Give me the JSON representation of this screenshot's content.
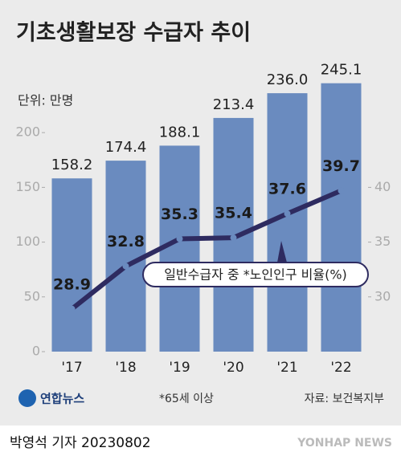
{
  "chart_data": {
    "type": "bar_line",
    "title": "기초생활보장 수급자 추이",
    "unit": "단위: 만명",
    "categories": [
      "'17",
      "'18",
      "'19",
      "'20",
      "'21",
      "'22"
    ],
    "series": [
      {
        "name": "기초생활보장 수급자",
        "color": "#6a8bbf",
        "values": [
          158.2,
          174.4,
          188.1,
          213.4,
          236.0,
          245.1
        ],
        "value_labels": [
          "158.2",
          "174.4",
          "188.1",
          "213.4",
          "236.0",
          "245.1"
        ]
      },
      {
        "name": "일반수급자 중 *노인인구 비율(%)",
        "color": "#2e2b60",
        "axis": "y2",
        "values": [
          28.9,
          32.8,
          35.3,
          35.4,
          37.6,
          39.7
        ]
      }
    ],
    "ylim": [
      0,
      250
    ],
    "yticks": [
      0,
      50,
      100,
      150,
      200
    ],
    "y2lim": [
      25,
      50
    ],
    "y2ticks": [
      30,
      35,
      40
    ],
    "footnote": "*65세 이상",
    "source": "자료: 보건복지부",
    "logo": "연합뉴스",
    "byline": "박영석 기자 20230802",
    "watermark": "YONHAP NEWS"
  }
}
